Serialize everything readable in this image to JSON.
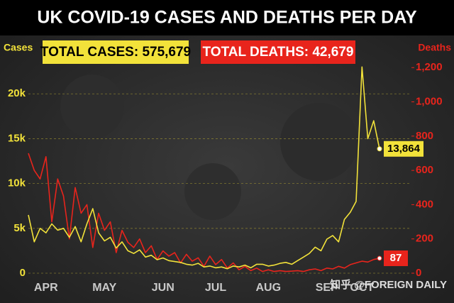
{
  "chart_data": {
    "type": "line",
    "title": "UK COVID-19 CASES AND DEATHS PER DAY",
    "y_label": "Cases",
    "y2_label": "Deaths",
    "annotations": [
      "TOTAL CASES: 575,679",
      "TOTAL DEATHS: 42,679"
    ],
    "watermark": "知乎 @FOREIGN DAILY",
    "categories": [
      null,
      null,
      null,
      "APR",
      null,
      null,
      null,
      null,
      null,
      null,
      null,
      null,
      null,
      "MAY",
      null,
      null,
      null,
      null,
      null,
      null,
      null,
      null,
      null,
      "JUN",
      null,
      null,
      null,
      null,
      null,
      null,
      null,
      null,
      "JUL",
      null,
      null,
      null,
      null,
      null,
      null,
      null,
      null,
      "AUG",
      null,
      null,
      null,
      null,
      null,
      null,
      null,
      null,
      null,
      "SEP",
      null,
      null,
      null,
      null,
      null,
      "OCT",
      null,
      null,
      null
    ],
    "series": [
      {
        "color": "#f2e23a",
        "values": [
          6500,
          3500,
          5000,
          4500,
          5500,
          4800,
          5000,
          4000,
          5200,
          3500,
          5500,
          7200,
          4500,
          3600,
          4000,
          2800,
          3500,
          2500,
          2200,
          2600,
          1800,
          2000,
          1500,
          1700,
          1400,
          1300,
          1200,
          1000,
          900,
          1100,
          700,
          800,
          600,
          700,
          500,
          800,
          700,
          900,
          600,
          1000,
          1000,
          800,
          900,
          1100,
          1200,
          1000,
          1400,
          1800,
          2200,
          2900,
          2500,
          3800,
          4200,
          3500,
          6000,
          6800,
          8000,
          23000,
          15000,
          17000,
          13864
        ],
        "value_labels": [
          null,
          null,
          null,
          null,
          null,
          null,
          null,
          null,
          null,
          null,
          null,
          null,
          null,
          null,
          null,
          null,
          null,
          null,
          null,
          null,
          null,
          null,
          null,
          null,
          null,
          null,
          null,
          null,
          null,
          null,
          null,
          null,
          null,
          null,
          null,
          null,
          null,
          null,
          null,
          null,
          null,
          null,
          null,
          null,
          null,
          null,
          null,
          null,
          null,
          null,
          null,
          null,
          null,
          null,
          null,
          null,
          null,
          null,
          null,
          null,
          "13,864"
        ]
      },
      {
        "color": "#e8241c",
        "axis": "y2",
        "values": [
          700,
          600,
          550,
          680,
          300,
          550,
          450,
          200,
          500,
          350,
          400,
          150,
          350,
          250,
          300,
          120,
          250,
          180,
          150,
          200,
          120,
          160,
          80,
          130,
          100,
          120,
          60,
          110,
          70,
          90,
          40,
          100,
          50,
          80,
          30,
          60,
          20,
          40,
          15,
          30,
          10,
          20,
          10,
          15,
          10,
          12,
          15,
          10,
          20,
          25,
          15,
          30,
          25,
          40,
          30,
          50,
          60,
          70,
          65,
          80,
          87
        ]
      }
    ],
    "ylim": [
      0,
      23500
    ],
    "yticks": [
      0,
      {
        "value": 5000,
        "label": "5k"
      },
      {
        "value": 10000,
        "label": "10k"
      },
      {
        "value": 15000,
        "label": "15k"
      },
      {
        "value": 20000,
        "label": "20k"
      }
    ],
    "y2lim": [
      0,
      1230
    ],
    "y2ticks": [
      0,
      200,
      400,
      600,
      800,
      {
        "value": 1000,
        "label": "1,000"
      },
      {
        "value": 1200,
        "label": "1,200"
      }
    ],
    "grid": true
  }
}
